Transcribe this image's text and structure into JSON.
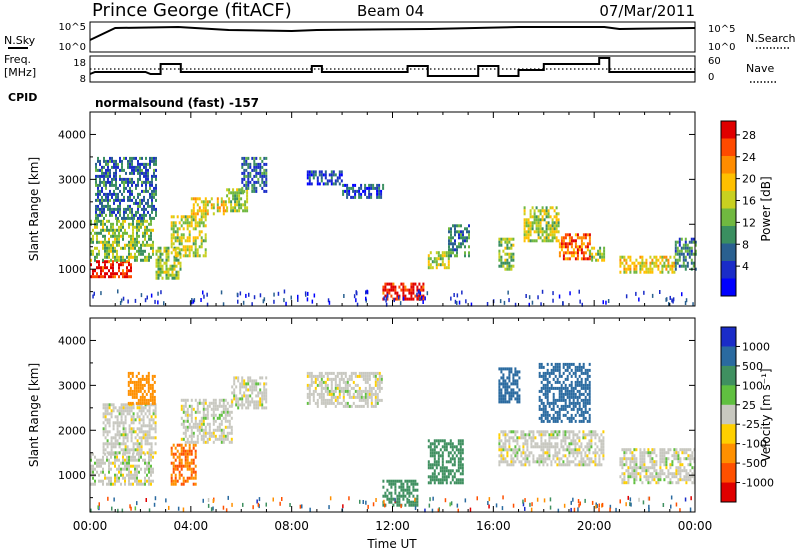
{
  "header": {
    "station": "Prince George (fitACF)",
    "beam": "Beam 04",
    "date": "07/Mar/2011"
  },
  "panels": {
    "nsky": {
      "left_label": "N.Sky",
      "left_ticks": [
        "10^5",
        "10^0"
      ],
      "right_ticks": [
        "10^5",
        "10^0"
      ],
      "right_label": "N.Search"
    },
    "freq": {
      "left_label_line1": "Freq.",
      "left_label_line2": "[MHz]",
      "left_ticks": [
        "18",
        "8"
      ],
      "right_ticks": [
        "60",
        "0"
      ],
      "right_label": "Nave"
    },
    "cpid": {
      "label": "CPID",
      "text": "normalsound (fast) -157"
    }
  },
  "colorbars": {
    "power": {
      "label": "Power [dB]",
      "ticks": [
        "28",
        "24",
        "20",
        "16",
        "12",
        "8",
        "4"
      ],
      "colors": [
        "#e00000",
        "#ff4a00",
        "#ff8c00",
        "#ffc000",
        "#c8d020",
        "#70b840",
        "#3a8f60",
        "#2a6090",
        "#1a2cc8",
        "#0000ff"
      ]
    },
    "velocity": {
      "label": "Velocity [m s⁻¹]",
      "ticks": [
        "1000",
        "500",
        "100",
        "25",
        "-25",
        "-100",
        "-500",
        "-1000"
      ],
      "colors": [
        "#1a2cc8",
        "#2a6aa0",
        "#3f9060",
        "#60c040",
        "#c8c8c0",
        "#ffd000",
        "#ff9000",
        "#ff5000",
        "#e00000"
      ]
    }
  },
  "xaxis": {
    "label": "Time UT",
    "ticks": [
      "00:00",
      "04:00",
      "08:00",
      "12:00",
      "16:00",
      "20:00",
      "00:00"
    ]
  },
  "chart_data": [
    {
      "type": "heatmap",
      "name_text": "Power",
      "xlabel": "Time UT",
      "ylabel": "Slant Range [km]",
      "xlim": [
        0,
        24
      ],
      "ylim": [
        180,
        4500
      ],
      "yticks": [
        1000,
        2000,
        3000,
        4000
      ],
      "colorbar_range": [
        0,
        30
      ],
      "patches": [
        {
          "t": [
            0.0,
            1.6
          ],
          "r": [
            800,
            1200
          ],
          "v": 28
        },
        {
          "t": [
            0.0,
            2.5
          ],
          "r": [
            1200,
            2100
          ],
          "v": 14
        },
        {
          "t": [
            0.2,
            2.6
          ],
          "r": [
            2100,
            3500
          ],
          "v": 8
        },
        {
          "t": [
            2.6,
            3.6
          ],
          "r": [
            800,
            1500
          ],
          "v": 14
        },
        {
          "t": [
            3.2,
            4.6
          ],
          "r": [
            1300,
            2200
          ],
          "v": 16
        },
        {
          "t": [
            4.0,
            5.4
          ],
          "r": [
            2200,
            2600
          ],
          "v": 18
        },
        {
          "t": [
            5.4,
            6.2
          ],
          "r": [
            2300,
            2800
          ],
          "v": 14
        },
        {
          "t": [
            6.0,
            7.0
          ],
          "r": [
            2700,
            3500
          ],
          "v": 8
        },
        {
          "t": [
            8.6,
            10.0
          ],
          "r": [
            2900,
            3200
          ],
          "v": 6
        },
        {
          "t": [
            10.0,
            11.6
          ],
          "r": [
            2600,
            2900
          ],
          "v": 6
        },
        {
          "t": [
            11.6,
            13.2
          ],
          "r": [
            350,
            700
          ],
          "v": 28
        },
        {
          "t": [
            13.4,
            14.2
          ],
          "r": [
            1000,
            1400
          ],
          "v": 16
        },
        {
          "t": [
            14.2,
            15.0
          ],
          "r": [
            1300,
            2000
          ],
          "v": 10
        },
        {
          "t": [
            16.2,
            16.8
          ],
          "r": [
            1000,
            1700
          ],
          "v": 14
        },
        {
          "t": [
            17.2,
            18.6
          ],
          "r": [
            1600,
            2400
          ],
          "v": 16
        },
        {
          "t": [
            18.6,
            19.8
          ],
          "r": [
            1200,
            1800
          ],
          "v": 24
        },
        {
          "t": [
            19.8,
            20.4
          ],
          "r": [
            1200,
            1500
          ],
          "v": 16
        },
        {
          "t": [
            21.0,
            23.2
          ],
          "r": [
            900,
            1300
          ],
          "v": 18
        },
        {
          "t": [
            23.2,
            24.0
          ],
          "r": [
            1000,
            1700
          ],
          "v": 10
        }
      ]
    },
    {
      "type": "heatmap",
      "name_text": "Velocity",
      "xlabel": "Time UT",
      "ylabel": "Slant Range [km]",
      "xlim": [
        0,
        24
      ],
      "ylim": [
        180,
        4500
      ],
      "yticks": [
        1000,
        2000,
        3000,
        4000
      ],
      "colorbar_range": [
        -1000,
        1000
      ],
      "patches": [
        {
          "t": [
            0.0,
            2.5
          ],
          "r": [
            800,
            1500
          ],
          "v": 0
        },
        {
          "t": [
            0.5,
            2.6
          ],
          "r": [
            1500,
            2600
          ],
          "v": 0
        },
        {
          "t": [
            1.5,
            2.6
          ],
          "r": [
            2600,
            3300
          ],
          "v": -200
        },
        {
          "t": [
            3.2,
            4.2
          ],
          "r": [
            800,
            1700
          ],
          "v": -300
        },
        {
          "t": [
            3.6,
            5.6
          ],
          "r": [
            1700,
            2700
          ],
          "v": 0
        },
        {
          "t": [
            5.6,
            7.0
          ],
          "r": [
            2500,
            3200
          ],
          "v": 0
        },
        {
          "t": [
            8.6,
            11.6
          ],
          "r": [
            2500,
            3300
          ],
          "v": 0
        },
        {
          "t": [
            11.6,
            13.0
          ],
          "r": [
            350,
            900
          ],
          "v": 120
        },
        {
          "t": [
            13.4,
            14.8
          ],
          "r": [
            800,
            1800
          ],
          "v": 250
        },
        {
          "t": [
            16.2,
            17.0
          ],
          "r": [
            2600,
            3400
          ],
          "v": 500
        },
        {
          "t": [
            16.2,
            20.4
          ],
          "r": [
            1200,
            2000
          ],
          "v": 0
        },
        {
          "t": [
            17.8,
            19.8
          ],
          "r": [
            2200,
            3500
          ],
          "v": 700
        },
        {
          "t": [
            21.0,
            24.0
          ],
          "r": [
            800,
            1600
          ],
          "v": 0
        }
      ]
    }
  ]
}
